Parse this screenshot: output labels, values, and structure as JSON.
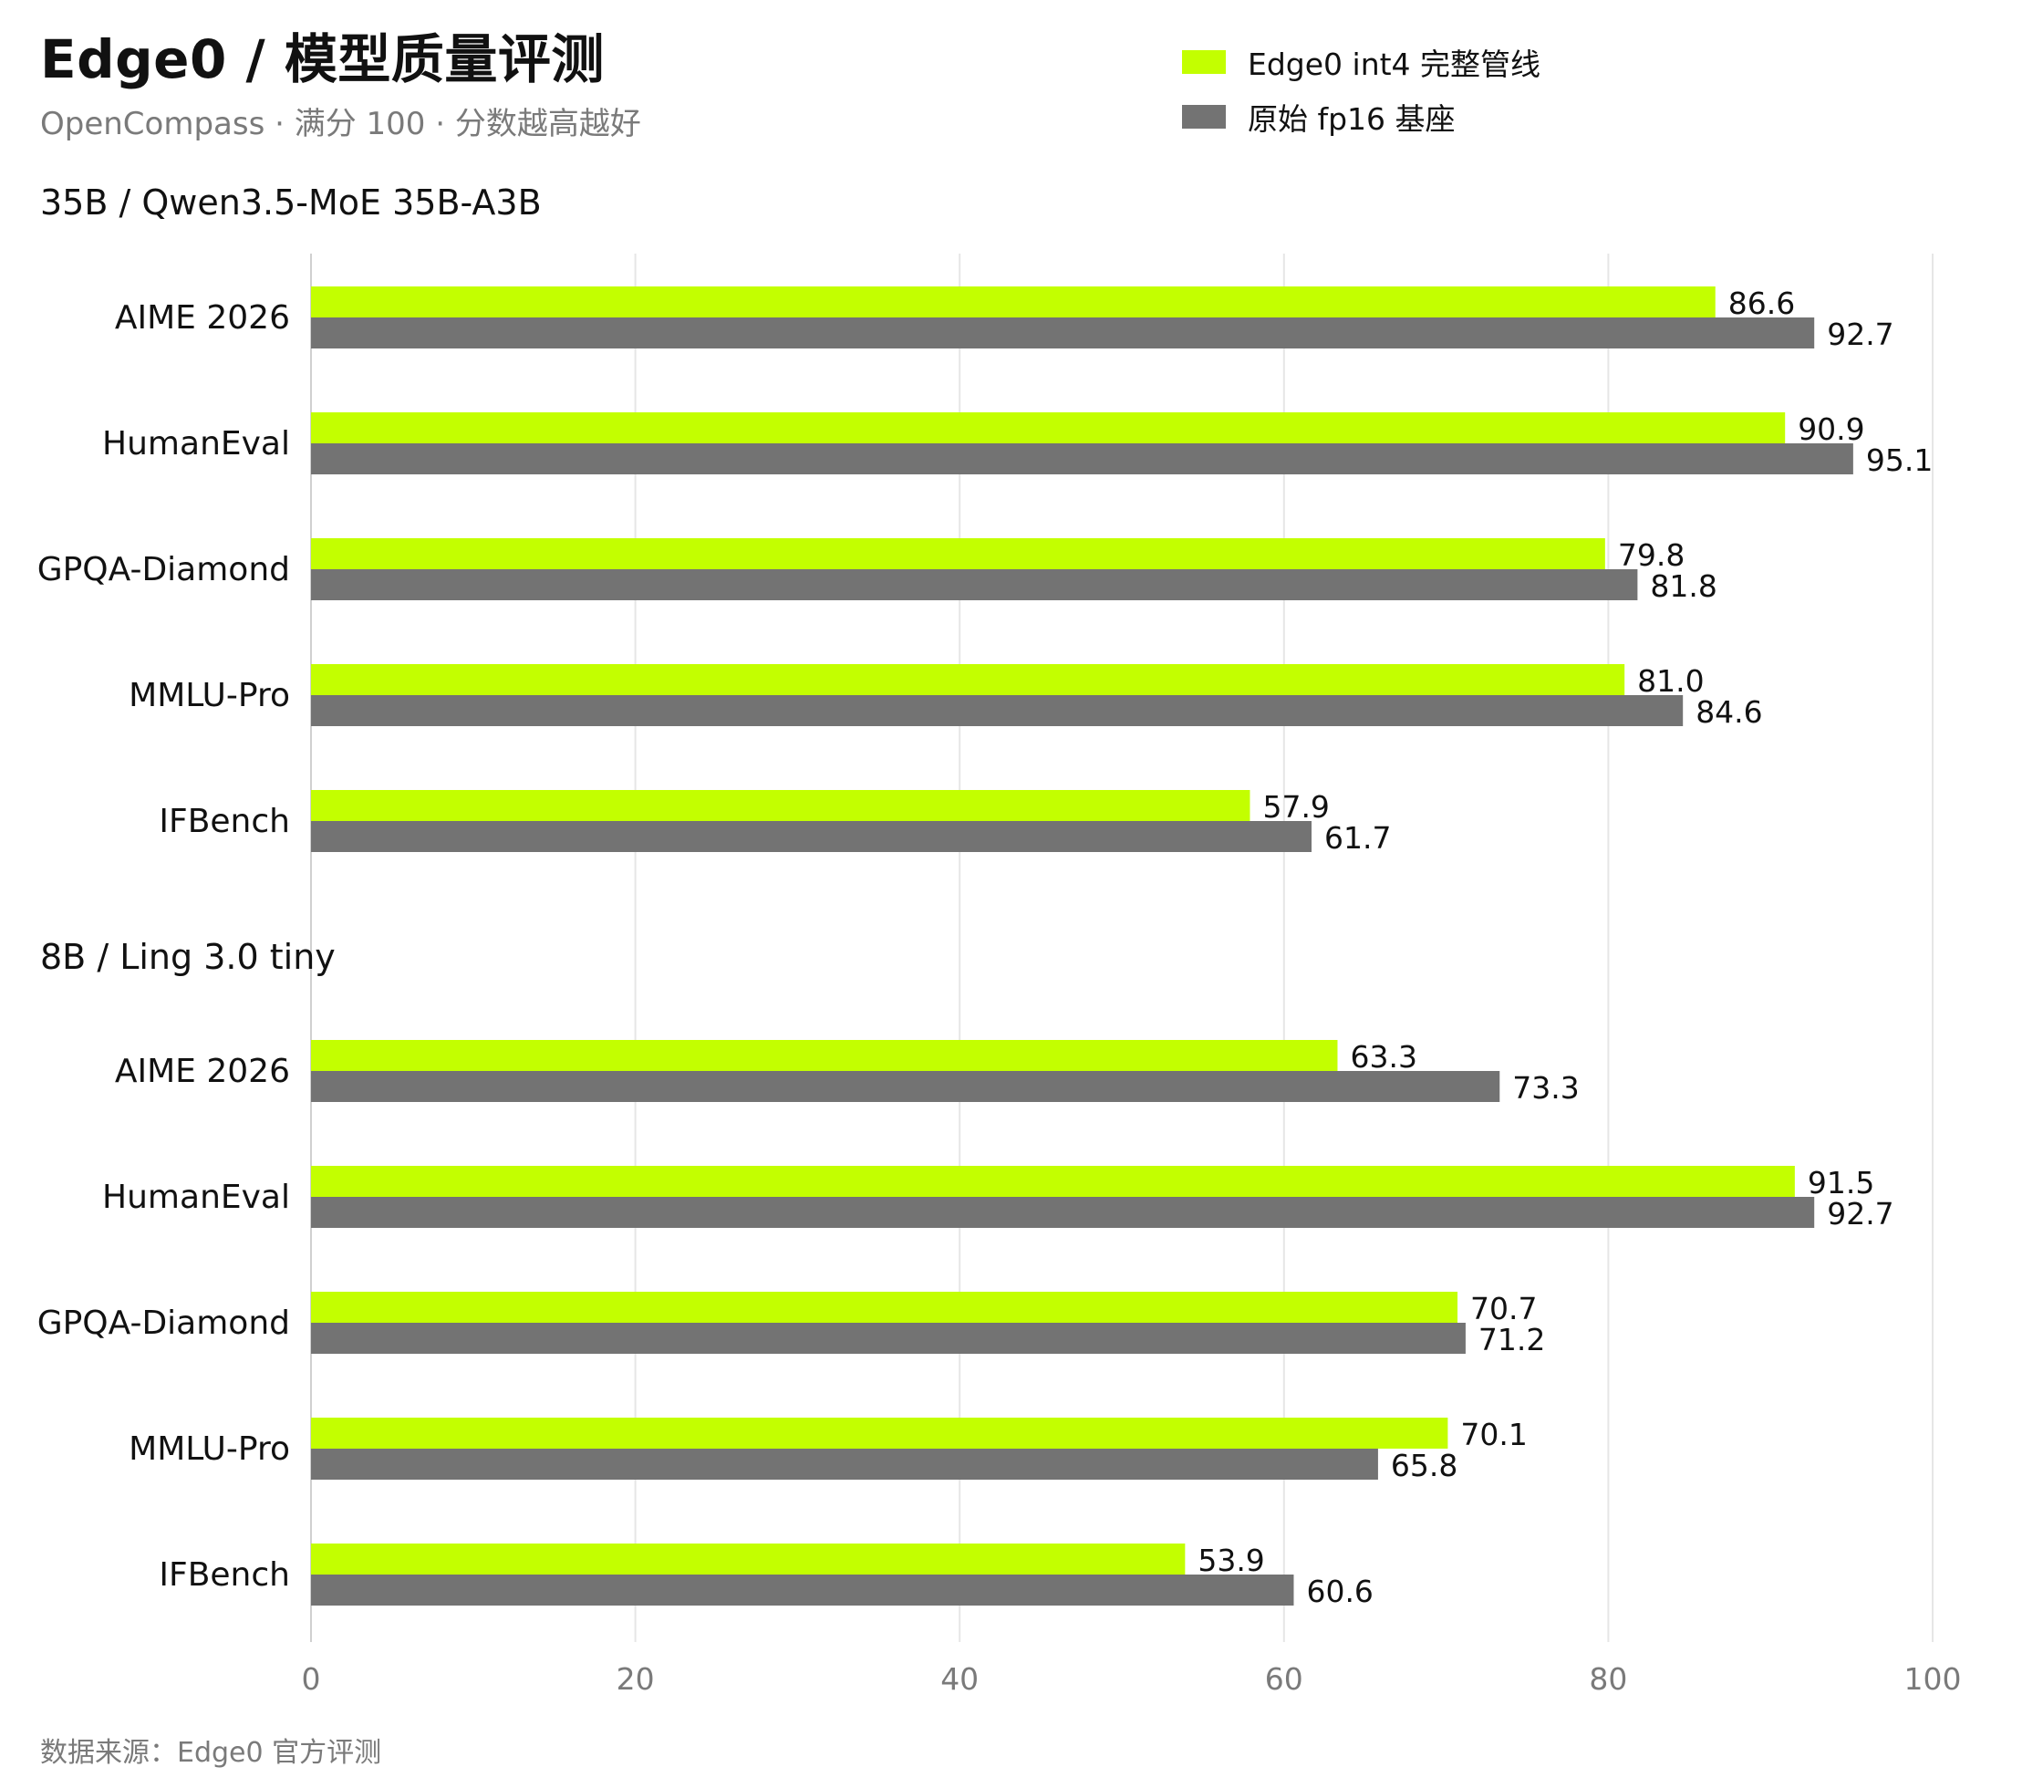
{
  "title": "Edge0 / 模型质量评测",
  "subtitle": "OpenCompass · 满分 100 · 分数越高越好",
  "footer": "数据来源：Edge0 官方评测",
  "colors": {
    "edge0": "#c3ff00",
    "fp16": "#737373",
    "grid": "#e6e6e6",
    "axis_text": "#7a7a7a"
  },
  "legend": [
    {
      "label": "Edge0 int4 完整管线",
      "color": "#c3ff00"
    },
    {
      "label": "原始 fp16 基座",
      "color": "#737373"
    }
  ],
  "chart_data": {
    "type": "bar",
    "orientation": "horizontal",
    "xlim": [
      0,
      100
    ],
    "xticks": [
      0,
      20,
      40,
      60,
      80,
      100
    ],
    "grid": true,
    "legend_position": "top-right",
    "series_names": [
      "Edge0 int4 完整管线",
      "原始 fp16 基座"
    ],
    "groups": [
      {
        "label": "35B  /  Qwen3.5-MoE 35B-A3B",
        "categories": [
          "AIME 2026",
          "HumanEval",
          "GPQA-Diamond",
          "MMLU-Pro",
          "IFBench"
        ],
        "series": [
          {
            "name": "Edge0 int4 完整管线",
            "values": [
              86.6,
              90.9,
              79.8,
              81.0,
              57.9
            ]
          },
          {
            "name": "原始 fp16 基座",
            "values": [
              92.7,
              95.1,
              81.8,
              84.6,
              61.7
            ]
          }
        ]
      },
      {
        "label": "8B  /  Ling 3.0 tiny",
        "categories": [
          "AIME 2026",
          "HumanEval",
          "GPQA-Diamond",
          "MMLU-Pro",
          "IFBench"
        ],
        "series": [
          {
            "name": "Edge0 int4 完整管线",
            "values": [
              63.3,
              91.5,
              70.7,
              70.1,
              53.9
            ]
          },
          {
            "name": "原始 fp16 基座",
            "values": [
              73.3,
              92.7,
              71.2,
              65.8,
              60.6
            ]
          }
        ]
      }
    ]
  }
}
